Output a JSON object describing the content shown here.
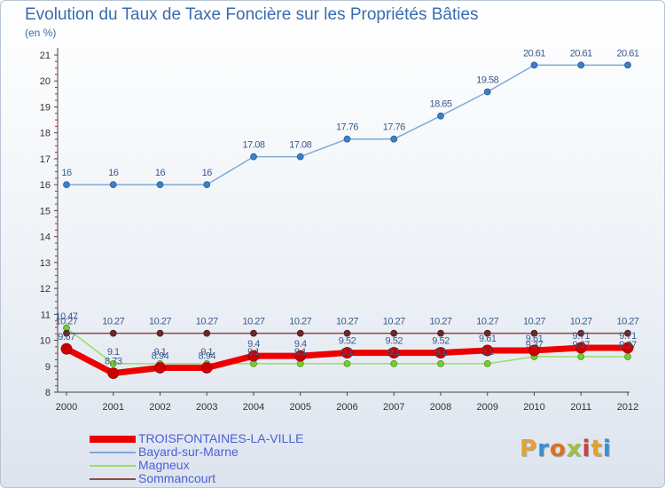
{
  "title": "Evolution du Taux de Taxe Foncière sur les Propriétés Bâties",
  "unit_label": "(en %)",
  "logo_letters": [
    "P",
    "r",
    "o",
    "x",
    "i",
    "t",
    "i"
  ],
  "logo_colors": [
    "#e8a030",
    "#3a8fd0",
    "#e07020",
    "#a0c040",
    "#d04040",
    "#e8a030",
    "#3a8fd0"
  ],
  "chart_data": {
    "type": "line",
    "x": [
      "2000",
      "2001",
      "2002",
      "2003",
      "2004",
      "2005",
      "2006",
      "2007",
      "2008",
      "2009",
      "2010",
      "2011",
      "2012"
    ],
    "ylim": [
      8,
      21
    ],
    "yticks": [
      "8",
      "9",
      "10",
      "11",
      "12",
      "13",
      "14",
      "15",
      "16",
      "17",
      "18",
      "19",
      "20",
      "21"
    ],
    "grid": false,
    "legend_position": "bottom-left",
    "series": [
      {
        "name": "TROISFONTAINES-LA-VILLE",
        "color": "#ee0000",
        "values": [
          9.67,
          8.73,
          8.94,
          8.94,
          9.4,
          9.4,
          9.52,
          9.52,
          9.52,
          9.61,
          9.61,
          9.71,
          9.71
        ],
        "labels": [
          "9.67",
          "8.73",
          "8.94",
          "8.94",
          "9.4",
          "9.4",
          "9.52",
          "9.52",
          "9.52",
          "9.61",
          "9.61",
          "9.71",
          "9.71"
        ]
      },
      {
        "name": "Bayard-sur-Marne",
        "color": "#7fa9d8",
        "values": [
          16,
          16,
          16,
          16,
          17.08,
          17.08,
          17.76,
          17.76,
          18.65,
          19.58,
          20.61,
          20.61,
          20.61
        ],
        "labels": [
          "16",
          "16",
          "16",
          "16",
          "17.08",
          "17.08",
          "17.76",
          "17.76",
          "18.65",
          "19.58",
          "20.61",
          "20.61",
          "20.61"
        ]
      },
      {
        "name": "Magneux",
        "color": "#99dd66",
        "values": [
          10.47,
          9.1,
          9.1,
          9.1,
          9.1,
          9.1,
          9.1,
          9.1,
          9.1,
          9.1,
          9.37,
          9.37,
          9.37
        ],
        "labels": [
          "10.47",
          "9.1",
          "9.1",
          "9.1",
          "9.1",
          "9.1",
          "9.1",
          "9.1",
          "9.1",
          "9.1",
          "9.37",
          "9.37",
          "9.37"
        ]
      },
      {
        "name": "Sommancourt",
        "color": "#8b4a4a",
        "values": [
          10.27,
          10.27,
          10.27,
          10.27,
          10.27,
          10.27,
          10.27,
          10.27,
          10.27,
          10.27,
          10.27,
          10.27,
          10.27
        ],
        "labels": [
          "10.27",
          "10.27",
          "10.27",
          "10.27",
          "10.27",
          "10.27",
          "10.27",
          "10.27",
          "10.27",
          "10.27",
          "10.27",
          "10.27",
          "10.27"
        ]
      }
    ]
  }
}
